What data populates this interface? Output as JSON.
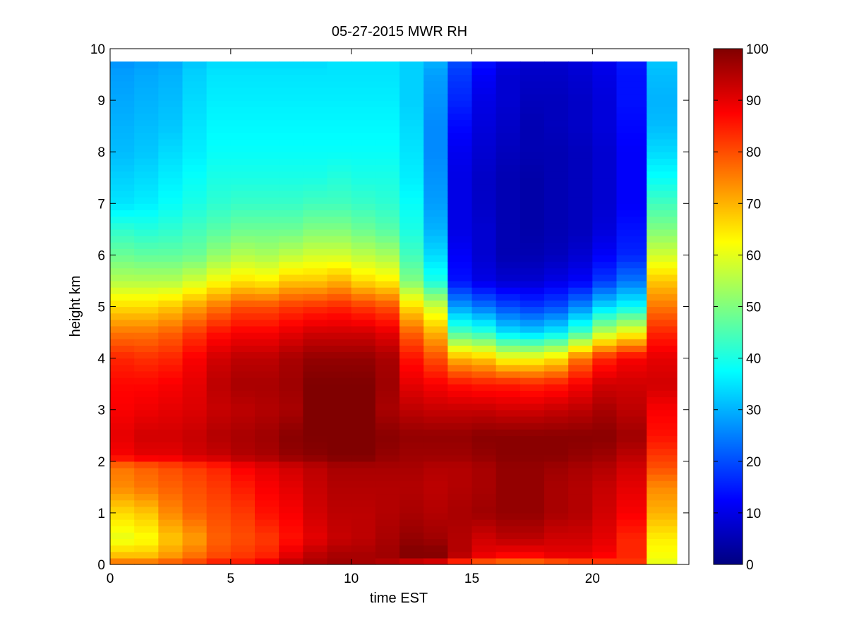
{
  "chart_data": {
    "type": "heatmap",
    "title": "05-27-2015 MWR RH",
    "xlabel": "time EST",
    "ylabel": "height km",
    "xlim": [
      0,
      24
    ],
    "ylim": [
      0,
      10
    ],
    "x_ticks": [
      0,
      5,
      10,
      15,
      20
    ],
    "y_ticks": [
      0,
      1,
      2,
      3,
      4,
      5,
      6,
      7,
      8,
      9,
      10
    ],
    "colorbar": {
      "colormap": "jet",
      "range": [
        0,
        100
      ],
      "ticks": [
        0,
        10,
        20,
        30,
        40,
        50,
        60,
        70,
        80,
        90,
        100
      ]
    },
    "data_extent": {
      "x": [
        0,
        23.5
      ],
      "y": [
        0,
        9.75
      ]
    },
    "z_label": "RH",
    "z_units": "%",
    "time_hours": [
      0.5,
      1.5,
      2.5,
      3.5,
      4.5,
      5.5,
      6.5,
      7.5,
      8.5,
      9.5,
      10.5,
      11.5,
      12.5,
      13.5,
      14.5,
      15.5,
      16.5,
      17.5,
      18.5,
      19.5,
      20.5,
      21.5,
      23.0
    ],
    "profile_heights_km": [
      0,
      0.2,
      0.5,
      1,
      1.5,
      1.9,
      2.1,
      2.5,
      3,
      3.5,
      4,
      4.5,
      5,
      5.5,
      6,
      6.5,
      7,
      7.5,
      8,
      8.5,
      9,
      9.5,
      9.75
    ],
    "rh_profiles": [
      [
        78,
        68,
        60,
        66,
        74,
        76,
        88,
        90,
        88,
        87,
        84,
        76,
        66,
        55,
        48,
        42,
        35,
        33,
        31,
        30,
        29,
        28,
        27
      ],
      [
        78,
        68,
        62,
        68,
        76,
        78,
        90,
        92,
        89,
        87,
        83,
        76,
        66,
        55,
        47,
        41,
        36,
        34,
        32,
        31,
        30,
        29,
        28
      ],
      [
        80,
        72,
        68,
        74,
        78,
        80,
        90,
        92,
        90,
        88,
        84,
        78,
        68,
        55,
        47,
        42,
        38,
        36,
        34,
        32,
        31,
        30,
        29
      ],
      [
        82,
        76,
        72,
        78,
        80,
        82,
        92,
        93,
        91,
        90,
        88,
        82,
        72,
        58,
        48,
        44,
        40,
        38,
        36,
        35,
        34,
        33,
        32
      ],
      [
        86,
        80,
        78,
        80,
        82,
        84,
        93,
        95,
        93,
        94,
        92,
        86,
        76,
        62,
        52,
        46,
        42,
        40,
        38,
        37,
        36,
        35,
        34
      ],
      [
        86,
        82,
        80,
        82,
        85,
        88,
        95,
        96,
        94,
        96,
        94,
        88,
        80,
        65,
        55,
        48,
        43,
        40,
        38,
        37,
        36,
        35,
        34
      ],
      [
        90,
        84,
        82,
        86,
        88,
        90,
        96,
        97,
        95,
        96,
        94,
        88,
        80,
        64,
        54,
        48,
        43,
        40,
        38,
        37,
        36,
        35,
        34
      ],
      [
        94,
        90,
        86,
        88,
        90,
        92,
        98,
        99,
        96,
        97,
        96,
        90,
        82,
        68,
        56,
        48,
        43,
        40,
        38,
        37,
        36,
        35,
        34
      ],
      [
        96,
        94,
        90,
        92,
        93,
        94,
        99,
        100,
        100,
        100,
        98,
        92,
        83,
        68,
        58,
        50,
        44,
        40,
        38,
        37,
        36,
        35,
        34
      ],
      [
        97,
        96,
        93,
        94,
        95,
        96,
        100,
        100,
        100,
        100,
        98,
        92,
        84,
        70,
        58,
        50,
        44,
        41,
        38,
        37,
        36,
        35,
        35
      ],
      [
        96,
        96,
        94,
        94,
        95,
        96,
        100,
        100,
        100,
        100,
        98,
        92,
        82,
        66,
        56,
        48,
        43,
        40,
        38,
        37,
        36,
        35,
        35
      ],
      [
        94,
        97,
        96,
        95,
        95,
        96,
        98,
        99,
        96,
        97,
        96,
        90,
        80,
        64,
        54,
        46,
        42,
        40,
        38,
        37,
        36,
        35,
        35
      ],
      [
        90,
        100,
        98,
        96,
        95,
        96,
        97,
        98,
        94,
        90,
        86,
        78,
        66,
        50,
        44,
        40,
        38,
        36,
        35,
        34,
        33,
        33,
        33
      ],
      [
        88,
        100,
        97,
        95,
        94,
        95,
        97,
        98,
        93,
        88,
        80,
        70,
        58,
        40,
        34,
        30,
        28,
        27,
        26,
        26,
        27,
        28,
        30
      ],
      [
        80,
        95,
        95,
        96,
        95,
        95,
        97,
        98,
        93,
        86,
        70,
        45,
        28,
        14,
        12,
        10,
        10,
        10,
        11,
        13,
        16,
        18,
        20
      ],
      [
        76,
        90,
        92,
        97,
        96,
        96,
        98,
        99,
        93,
        85,
        68,
        42,
        24,
        10,
        8,
        8,
        7,
        7,
        8,
        9,
        10,
        12,
        14
      ],
      [
        74,
        88,
        94,
        98,
        98,
        98,
        99,
        99,
        92,
        85,
        62,
        35,
        20,
        8,
        5,
        5,
        5,
        5,
        6,
        7,
        8,
        8,
        10
      ],
      [
        74,
        88,
        94,
        98,
        98,
        98,
        99,
        99,
        92,
        84,
        62,
        33,
        18,
        8,
        5,
        4,
        4,
        4,
        5,
        5,
        6,
        7,
        8
      ],
      [
        76,
        90,
        92,
        96,
        96,
        97,
        99,
        99,
        93,
        85,
        65,
        36,
        20,
        10,
        6,
        5,
        5,
        5,
        5,
        6,
        6,
        7,
        8
      ],
      [
        78,
        90,
        92,
        95,
        95,
        96,
        98,
        99,
        94,
        88,
        76,
        44,
        26,
        12,
        8,
        6,
        6,
        6,
        6,
        7,
        7,
        8,
        9
      ],
      [
        80,
        88,
        90,
        92,
        93,
        95,
        97,
        99,
        96,
        92,
        84,
        56,
        34,
        18,
        12,
        9,
        8,
        8,
        8,
        9,
        9,
        10,
        11
      ],
      [
        82,
        84,
        84,
        88,
        90,
        92,
        94,
        97,
        94,
        92,
        88,
        62,
        38,
        24,
        16,
        14,
        12,
        12,
        12,
        13,
        14,
        14,
        15
      ],
      [
        60,
        62,
        64,
        70,
        74,
        80,
        82,
        86,
        88,
        92,
        90,
        84,
        76,
        68,
        58,
        50,
        44,
        38,
        34,
        31,
        30,
        31,
        32
      ]
    ]
  }
}
